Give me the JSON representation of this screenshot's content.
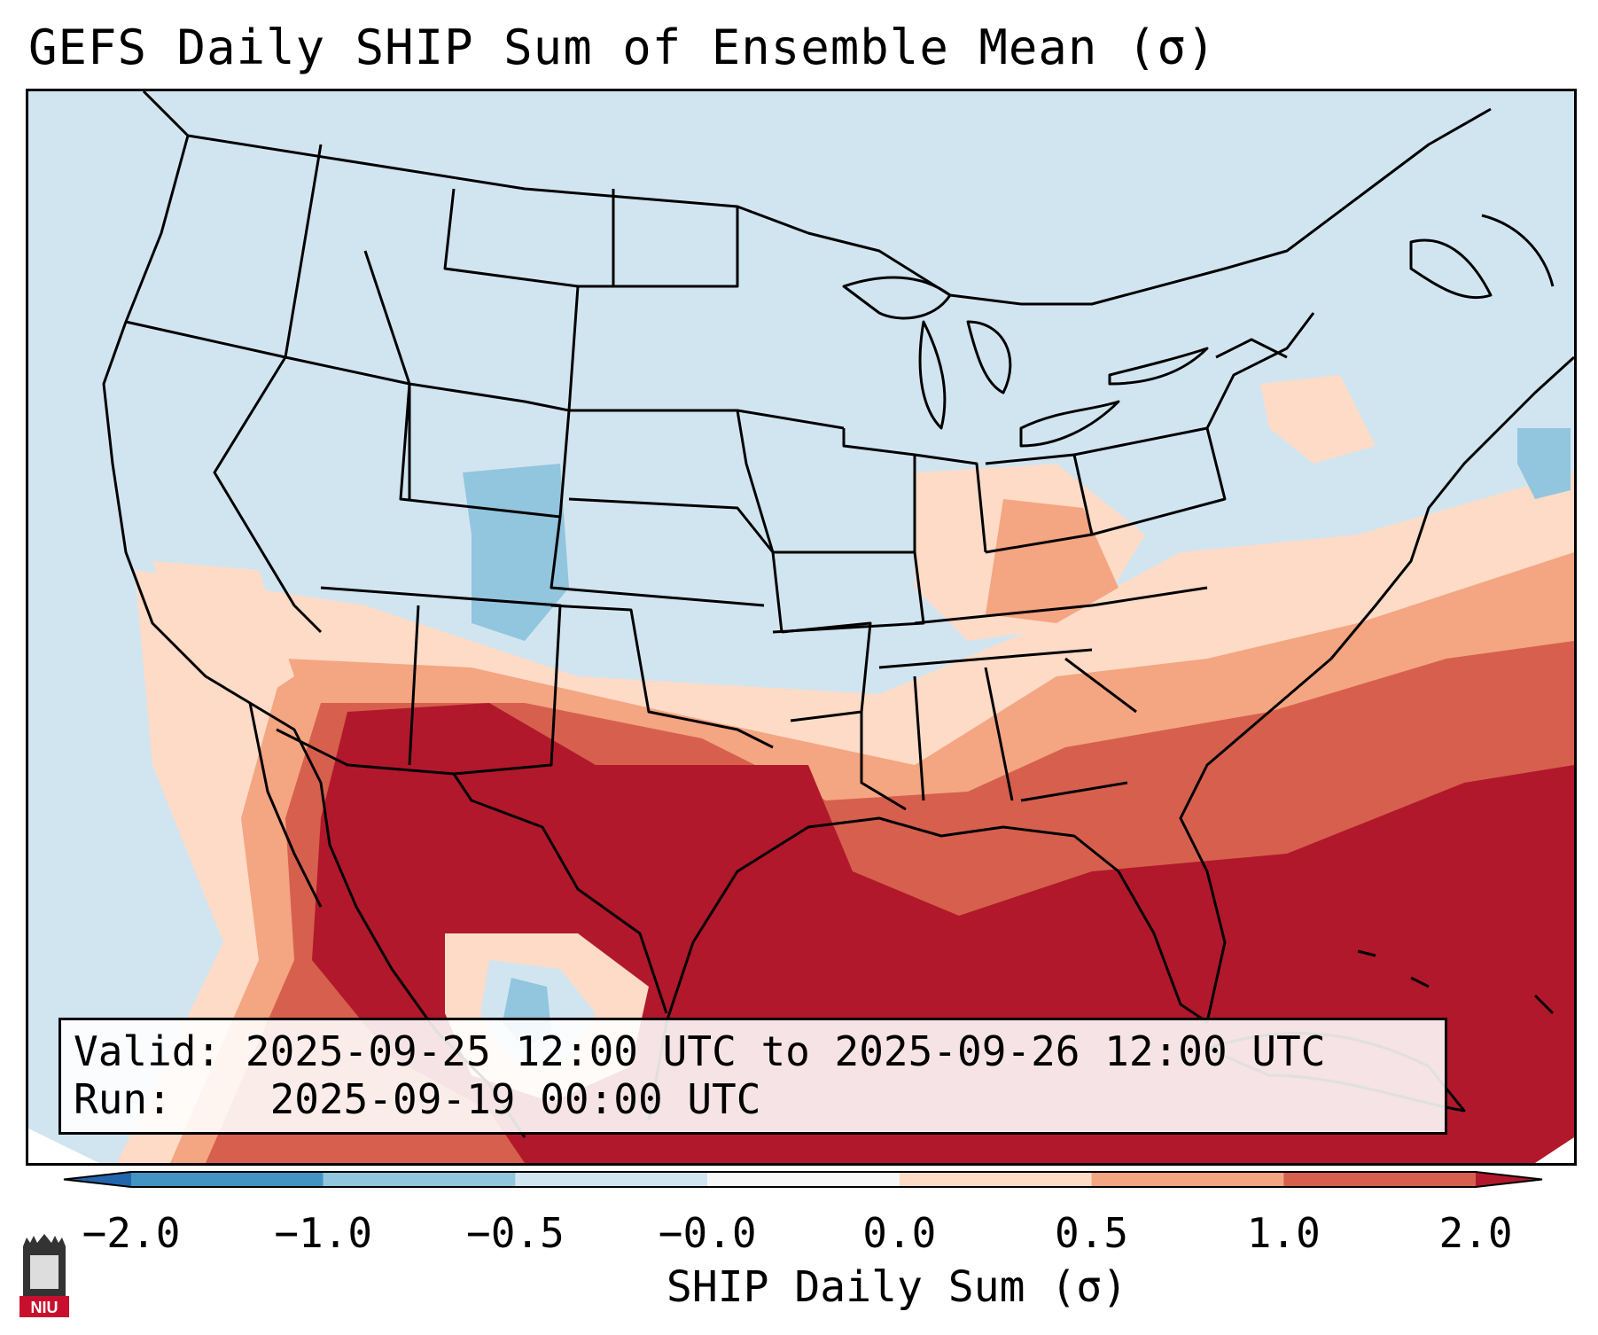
{
  "title": "GEFS Daily SHIP Sum of Ensemble Mean (σ)",
  "info": {
    "valid_label": "Valid:",
    "valid_value": "2025-09-25 12:00 UTC to 2025-09-26 12:00 UTC",
    "run_label": "Run:",
    "run_value": "2025-09-19 00:00 UTC"
  },
  "colorbar": {
    "label": "SHIP Daily Sum (σ)",
    "ticks": [
      "−2.0",
      "−1.0",
      "−0.5",
      "−0.0",
      "0.0",
      "0.5",
      "1.0",
      "2.0"
    ],
    "bins": [
      {
        "range": "< -2.0",
        "color": "#2166ac"
      },
      {
        "range": "-2.0 to -1.0",
        "color": "#4393c3"
      },
      {
        "range": "-1.0 to -0.5",
        "color": "#92c5de"
      },
      {
        "range": "-0.5 to -0.0",
        "color": "#d1e5f0"
      },
      {
        "range": "-0.0 to 0.0",
        "color": "#f7f7f7"
      },
      {
        "range": "0.0 to 0.5",
        "color": "#fddbc7"
      },
      {
        "range": "0.5 to 1.0",
        "color": "#f4a582"
      },
      {
        "range": "1.0 to 2.0",
        "color": "#d6604d"
      },
      {
        "range": "> 2.0",
        "color": "#b2182b"
      }
    ]
  },
  "logo": {
    "text": "NIU",
    "color": "#c8102e"
  }
}
